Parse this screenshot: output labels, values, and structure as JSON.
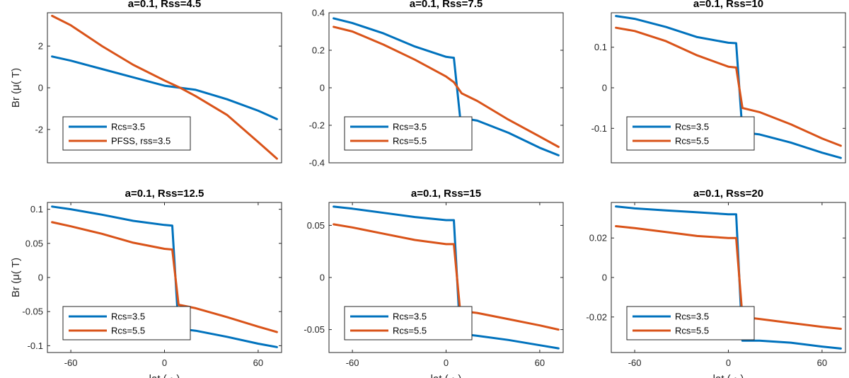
{
  "colors": {
    "series1": "#0072BD",
    "series2": "#D95319",
    "axis": "#262626"
  },
  "chart_data": [
    {
      "type": "line",
      "title": "a=0.1, Rss=4.5",
      "xlabel": "",
      "ylabel": "Br (μ( T)",
      "xlim": [
        -75,
        75
      ],
      "ylim": [
        -3.6,
        3.6
      ],
      "yticks": [
        -2,
        0,
        2
      ],
      "ytick_labels": [
        "-2",
        "0",
        "2"
      ],
      "xticks": [],
      "xtick_labels": [],
      "legend": "lower-left",
      "series": [
        {
          "name": "Rcs=3.5",
          "x": [
            -72,
            -60,
            -40,
            -20,
            0,
            10,
            20,
            40,
            60,
            72
          ],
          "y": [
            1.5,
            1.3,
            0.9,
            0.5,
            0.1,
            0.0,
            -0.1,
            -0.55,
            -1.1,
            -1.5
          ]
        },
        {
          "name": "PFSS, rss=3.5",
          "x": [
            -72,
            -60,
            -40,
            -20,
            0,
            10,
            20,
            40,
            60,
            72
          ],
          "y": [
            3.45,
            3.0,
            2.0,
            1.1,
            0.35,
            0.0,
            -0.4,
            -1.3,
            -2.6,
            -3.4
          ]
        }
      ]
    },
    {
      "type": "line",
      "title": "a=0.1, Rss=7.5",
      "xlabel": "",
      "ylabel": "",
      "xlim": [
        -75,
        75
      ],
      "ylim": [
        -0.4,
        0.4
      ],
      "yticks": [
        -0.4,
        -0.2,
        0,
        0.2,
        0.4
      ],
      "ytick_labels": [
        "-0.4",
        "-0.2",
        "0",
        "0.2",
        "0.4"
      ],
      "xticks": [],
      "xtick_labels": [],
      "legend": "lower-left",
      "series": [
        {
          "name": "Rcs=3.5",
          "x": [
            -72,
            -60,
            -40,
            -20,
            0,
            5,
            9,
            20,
            40,
            60,
            72
          ],
          "y": [
            0.37,
            0.345,
            0.29,
            0.22,
            0.165,
            0.16,
            -0.16,
            -0.175,
            -0.24,
            -0.32,
            -0.36
          ]
        },
        {
          "name": "Rcs=5.5",
          "x": [
            -72,
            -60,
            -40,
            -20,
            0,
            5,
            10,
            20,
            40,
            60,
            72
          ],
          "y": [
            0.325,
            0.3,
            0.23,
            0.15,
            0.06,
            0.03,
            -0.03,
            -0.07,
            -0.17,
            -0.26,
            -0.315
          ]
        }
      ]
    },
    {
      "type": "line",
      "title": "a=0.1, Rss=10",
      "xlabel": "",
      "ylabel": "",
      "xlim": [
        -75,
        75
      ],
      "ylim": [
        -0.185,
        0.185
      ],
      "yticks": [
        -0.1,
        0,
        0.1
      ],
      "ytick_labels": [
        "-0.1",
        "0",
        "0.1"
      ],
      "xticks": [],
      "xtick_labels": [],
      "legend": "lower-left",
      "series": [
        {
          "name": "Rcs=3.5",
          "x": [
            -72,
            -60,
            -40,
            -20,
            0,
            5,
            9,
            20,
            40,
            60,
            72
          ],
          "y": [
            0.177,
            0.17,
            0.15,
            0.125,
            0.111,
            0.11,
            -0.11,
            -0.115,
            -0.135,
            -0.16,
            -0.173
          ]
        },
        {
          "name": "Rcs=5.5",
          "x": [
            -72,
            -60,
            -40,
            -20,
            0,
            5,
            9,
            20,
            40,
            60,
            72
          ],
          "y": [
            0.148,
            0.14,
            0.115,
            0.08,
            0.052,
            0.05,
            -0.05,
            -0.06,
            -0.09,
            -0.125,
            -0.143
          ]
        }
      ]
    },
    {
      "type": "line",
      "title": "a=0.1, Rss=12.5",
      "xlabel": "lat ( ◦ )",
      "ylabel": "Br (μ( T)",
      "xlim": [
        -75,
        75
      ],
      "ylim": [
        -0.11,
        0.11
      ],
      "yticks": [
        -0.1,
        -0.05,
        0,
        0.05,
        0.1
      ],
      "ytick_labels": [
        "-0.1",
        "-0.05",
        "0",
        "0.05",
        "0.1"
      ],
      "xticks": [
        -60,
        0,
        60
      ],
      "xtick_labels": [
        "-60",
        "0",
        "60"
      ],
      "legend": "lower-left",
      "series": [
        {
          "name": "Rcs=3.5",
          "x": [
            -72,
            -60,
            -40,
            -20,
            0,
            5,
            9,
            20,
            40,
            60,
            72
          ],
          "y": [
            0.104,
            0.1,
            0.092,
            0.083,
            0.077,
            0.076,
            -0.075,
            -0.078,
            -0.087,
            -0.097,
            -0.102
          ]
        },
        {
          "name": "Rcs=5.5",
          "x": [
            -72,
            -60,
            -40,
            -20,
            0,
            5,
            9,
            20,
            40,
            60,
            72
          ],
          "y": [
            0.081,
            0.075,
            0.064,
            0.051,
            0.042,
            0.041,
            -0.04,
            -0.045,
            -0.058,
            -0.072,
            -0.08
          ]
        }
      ]
    },
    {
      "type": "line",
      "title": "a=0.1, Rss=15",
      "xlabel": "lat ( ◦ )",
      "ylabel": "",
      "xlim": [
        -75,
        75
      ],
      "ylim": [
        -0.072,
        0.072
      ],
      "yticks": [
        -0.05,
        0,
        0.05
      ],
      "ytick_labels": [
        "-0.05",
        "0",
        "0.05"
      ],
      "xticks": [
        -60,
        0,
        60
      ],
      "xtick_labels": [
        "-60",
        "0",
        "60"
      ],
      "legend": "lower-left",
      "series": [
        {
          "name": "Rcs=3.5",
          "x": [
            -72,
            -60,
            -40,
            -20,
            0,
            5,
            9,
            20,
            40,
            60,
            72
          ],
          "y": [
            0.068,
            0.066,
            0.062,
            0.058,
            0.055,
            0.055,
            -0.054,
            -0.056,
            -0.06,
            -0.065,
            -0.068
          ]
        },
        {
          "name": "Rcs=5.5",
          "x": [
            -72,
            -60,
            -40,
            -20,
            0,
            5,
            9,
            20,
            40,
            60,
            72
          ],
          "y": [
            0.051,
            0.048,
            0.042,
            0.036,
            0.032,
            0.032,
            -0.032,
            -0.034,
            -0.04,
            -0.046,
            -0.05
          ]
        }
      ]
    },
    {
      "type": "line",
      "title": "a=0.1, Rss=20",
      "xlabel": "lat ( ◦ )",
      "ylabel": "",
      "xlim": [
        -75,
        75
      ],
      "ylim": [
        -0.038,
        0.038
      ],
      "yticks": [
        -0.02,
        0,
        0.02
      ],
      "ytick_labels": [
        "-0.02",
        "0",
        "0.02"
      ],
      "xticks": [
        -60,
        0,
        60
      ],
      "xtick_labels": [
        "-60",
        "0",
        "60"
      ],
      "legend": "lower-left",
      "series": [
        {
          "name": "Rcs=3.5",
          "x": [
            -72,
            -60,
            -40,
            -20,
            0,
            5,
            9,
            20,
            40,
            60,
            72
          ],
          "y": [
            0.036,
            0.035,
            0.034,
            0.033,
            0.032,
            0.032,
            -0.032,
            -0.032,
            -0.033,
            -0.035,
            -0.036
          ]
        },
        {
          "name": "Rcs=5.5",
          "x": [
            -72,
            -60,
            -40,
            -20,
            0,
            5,
            9,
            20,
            40,
            60,
            72
          ],
          "y": [
            0.026,
            0.025,
            0.023,
            0.021,
            0.02,
            0.02,
            -0.02,
            -0.021,
            -0.023,
            -0.025,
            -0.026
          ]
        }
      ]
    }
  ]
}
